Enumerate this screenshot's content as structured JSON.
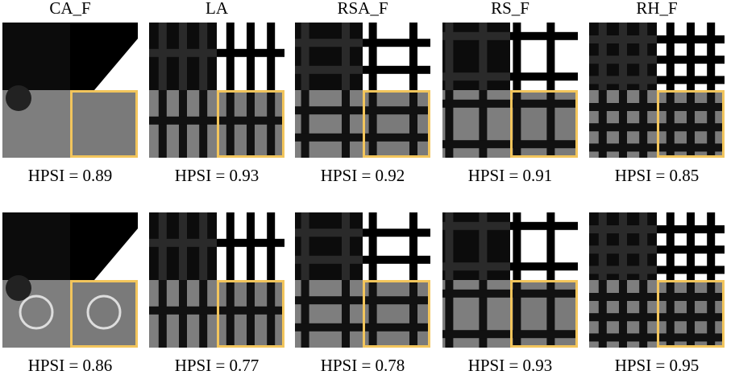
{
  "column_titles": [
    "CA_F",
    "LA",
    "RSA_F",
    "RS_F",
    "RH_F"
  ],
  "rows": [
    [
      "HPSI = 0.89",
      "HPSI = 0.93",
      "HPSI = 0.92",
      "HPSI = 0.91",
      "HPSI = 0.85"
    ],
    [
      "HPSI = 0.86",
      "HPSI = 0.77",
      "HPSI = 0.78",
      "HPSI = 0.93",
      "HPSI = 0.95"
    ]
  ]
}
